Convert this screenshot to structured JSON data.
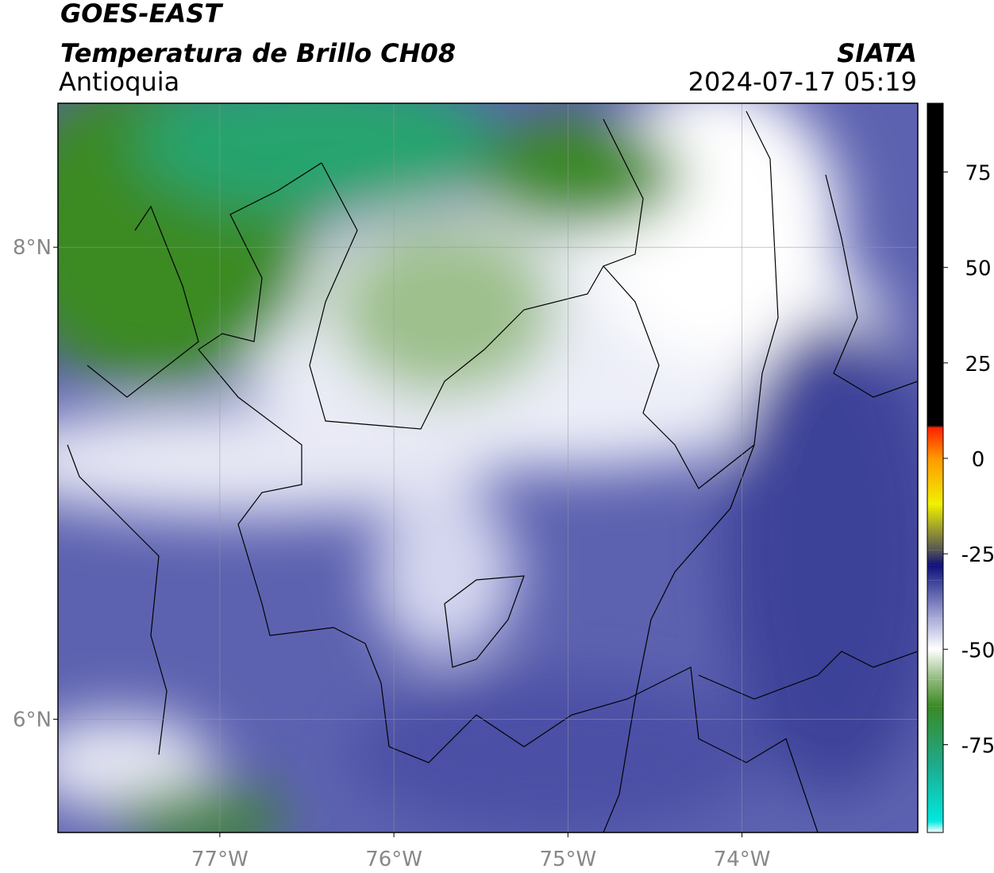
{
  "header": {
    "title": "GOES-EAST",
    "subtitle": "Temperatura de Brillo CH08",
    "region": "Antioquia",
    "source": "SIATA",
    "datetime": "2024-07-17 05:19"
  },
  "map": {
    "xlim": [
      -77.93,
      -72.99
    ],
    "ylim": [
      5.52,
      8.61
    ],
    "xticks": [
      {
        "value": -77,
        "label": "77°W"
      },
      {
        "value": -76,
        "label": "76°W"
      },
      {
        "value": -75,
        "label": "75°W"
      },
      {
        "value": -74,
        "label": "74°W"
      }
    ],
    "yticks": [
      {
        "value": 8,
        "label": "8°N"
      },
      {
        "value": 6,
        "label": "6°N"
      }
    ],
    "grid": true
  },
  "colorbar": {
    "lim": [
      -98,
      93
    ],
    "ticks": [
      75,
      50,
      25,
      0,
      -25,
      -50,
      -75
    ],
    "stops": [
      {
        "value": -98,
        "color": "#ffffff"
      },
      {
        "value": -95,
        "color": "#00e8e0"
      },
      {
        "value": -80,
        "color": "#1fa98a"
      },
      {
        "value": -65,
        "color": "#3a8a24"
      },
      {
        "value": -58,
        "color": "#8fb87a"
      },
      {
        "value": -50,
        "color": "#ffffff"
      },
      {
        "value": -42,
        "color": "#a9acd8"
      },
      {
        "value": -32,
        "color": "#3a3f98"
      },
      {
        "value": -28,
        "color": "#10107a"
      },
      {
        "value": -24,
        "color": "#555555"
      },
      {
        "value": -12,
        "color": "#f0f000"
      },
      {
        "value": 0,
        "color": "#ff9900"
      },
      {
        "value": 8,
        "color": "#ff2200"
      },
      {
        "value": 8.5,
        "color": "#000000"
      },
      {
        "value": 93,
        "color": "#000000"
      }
    ]
  }
}
